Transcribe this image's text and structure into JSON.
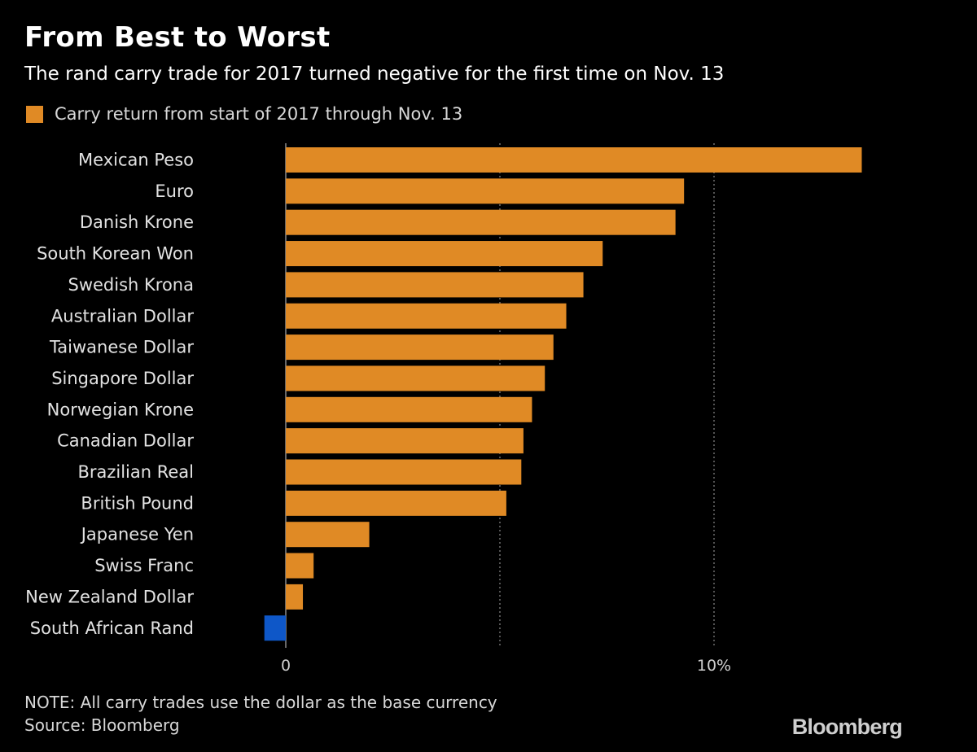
{
  "header": {
    "title": "From Best to Worst",
    "subtitle": "The rand carry trade for 2017 turned negative for the first time on Nov. 13"
  },
  "legend": {
    "label": "Carry return from start of 2017 through Nov. 13",
    "color": "#e08a25"
  },
  "footer": {
    "note": "NOTE: All carry trades use the dollar as the base currency",
    "source": "Source: Bloomberg",
    "brand": "Bloomberg"
  },
  "colors": {
    "positive": "#e08a25",
    "negative": "#0e57c8",
    "grid": "#8a8a8a",
    "background": "#000000"
  },
  "chart_data": {
    "type": "bar",
    "orientation": "horizontal",
    "categories": [
      "Mexican Peso",
      "Euro",
      "Danish Krone",
      "South Korean Won",
      "Swedish Krona",
      "Australian Dollar",
      "Taiwanese Dollar",
      "Singapore Dollar",
      "Norwegian Krone",
      "Canadian Dollar",
      "Brazilian Real",
      "British Pound",
      "Japanese Yen",
      "Swiss Franc",
      "New Zealand Dollar",
      "South African Rand"
    ],
    "values": [
      13.45,
      9.3,
      9.1,
      7.4,
      6.95,
      6.55,
      6.25,
      6.05,
      5.75,
      5.55,
      5.5,
      5.15,
      1.95,
      0.65,
      0.4,
      -0.5
    ],
    "xlim": [
      -1.0,
      14.0
    ],
    "ticks": [
      {
        "value": 0,
        "label": "0"
      },
      {
        "value": 10,
        "label": "10%"
      }
    ],
    "gridlines": [
      0,
      5,
      10
    ],
    "title": "From Best to Worst",
    "subtitle": "The rand carry trade for 2017 turned negative for the first time on Nov. 13",
    "xlabel": "",
    "ylabel": "",
    "legend": [
      "Carry return from start of 2017 through Nov. 13"
    ],
    "legend_position": "top-left",
    "grid": true
  }
}
